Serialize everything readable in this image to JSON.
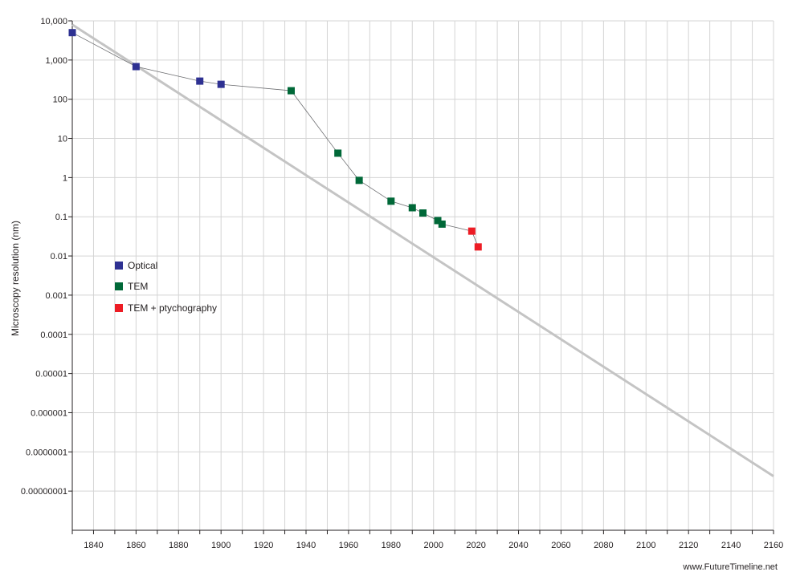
{
  "chart_data": {
    "type": "scatter",
    "ylabel": "Microscopy resolution (nm)",
    "xlabel": "",
    "yscale": "log",
    "xlim": [
      1830,
      2160
    ],
    "ylim": [
      1e-09,
      10000
    ],
    "grid": true,
    "legend_position": "left",
    "x_ticks": [
      1840,
      1860,
      1880,
      1900,
      1920,
      1940,
      1960,
      1980,
      2000,
      2020,
      2040,
      2060,
      2080,
      2100,
      2120,
      2140,
      2160
    ],
    "y_ticks": [
      {
        "value": 10000,
        "label": "10,000"
      },
      {
        "value": 1000,
        "label": "1,000"
      },
      {
        "value": 100,
        "label": "100"
      },
      {
        "value": 10,
        "label": "10"
      },
      {
        "value": 1,
        "label": "1"
      },
      {
        "value": 0.1,
        "label": "0.1"
      },
      {
        "value": 0.01,
        "label": "0.01"
      },
      {
        "value": 0.001,
        "label": "0.001"
      },
      {
        "value": 0.0001,
        "label": "0.0001"
      },
      {
        "value": 1e-05,
        "label": "0.00001"
      },
      {
        "value": 1e-06,
        "label": "0.000001"
      },
      {
        "value": 1e-07,
        "label": "0.0000001"
      },
      {
        "value": 1e-08,
        "label": "0.00000001"
      }
    ],
    "series": [
      {
        "name": "Optical",
        "color": "#2e3192",
        "points": [
          [
            1830,
            5000
          ],
          [
            1860,
            680
          ],
          [
            1890,
            290
          ],
          [
            1900,
            240
          ]
        ]
      },
      {
        "name": "TEM",
        "color": "#006838",
        "points": [
          [
            1933,
            165
          ],
          [
            1955,
            4.2
          ],
          [
            1965,
            0.85
          ],
          [
            1980,
            0.25
          ],
          [
            1990,
            0.17
          ],
          [
            1995,
            0.125
          ],
          [
            2002,
            0.08
          ],
          [
            2004,
            0.065
          ]
        ]
      },
      {
        "name": "TEM + ptychography",
        "color": "#ed1c24",
        "points": [
          [
            2018,
            0.043
          ],
          [
            2021,
            0.017
          ]
        ]
      }
    ],
    "trend_line": {
      "color": "#c4c4c4",
      "points": [
        [
          1830,
          8000
        ],
        [
          2160,
          2.4e-08
        ]
      ]
    },
    "connector_color": "#6d6e71"
  },
  "credit": "www.FutureTimeline.net"
}
